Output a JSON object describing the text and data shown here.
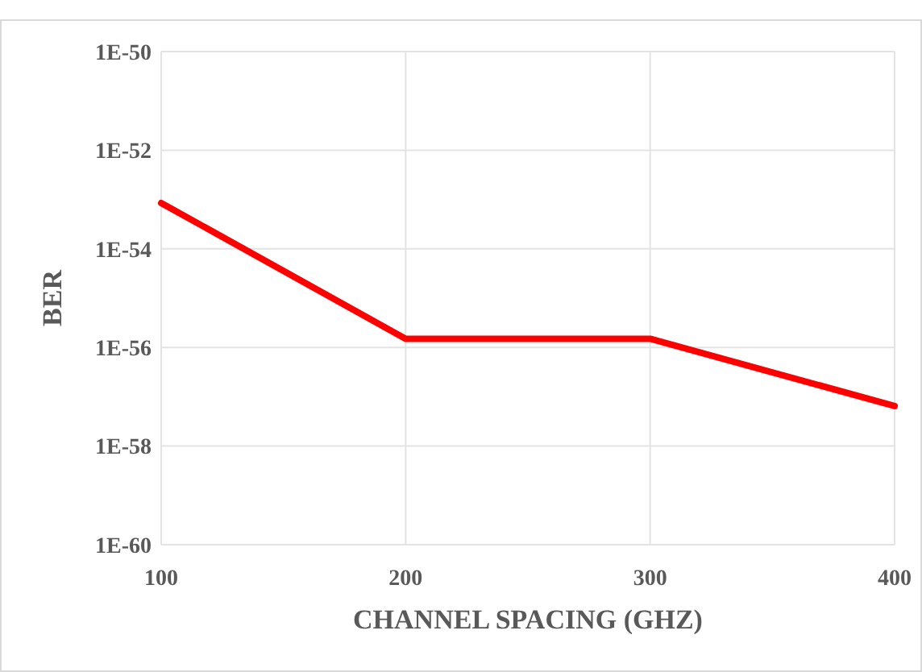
{
  "chart_data": {
    "type": "line",
    "xlabel": "CHANNEL SPACING (GHZ)",
    "ylabel": "BER",
    "x": [
      100,
      200,
      300,
      400
    ],
    "series": [
      {
        "color": "#ff0000",
        "values": [
          8.5e-54,
          1.5e-56,
          1.5e-56,
          6.5e-58
        ]
      }
    ],
    "xlim": [
      100,
      400
    ],
    "xticks": [
      100,
      200,
      300,
      400
    ],
    "ylim": [
      1e-60,
      1e-50
    ],
    "yticks": [
      {
        "value": 1e-60,
        "label": "1E-60"
      },
      {
        "value": 1e-58,
        "label": "1E-58"
      },
      {
        "value": 1e-56,
        "label": "1E-56"
      },
      {
        "value": 1e-54,
        "label": "1E-54"
      },
      {
        "value": 1e-52,
        "label": "1E-52"
      },
      {
        "value": 1e-50,
        "label": "1E-50"
      }
    ],
    "log": "y",
    "grid": true,
    "marker": "none",
    "line_style": "solid"
  }
}
